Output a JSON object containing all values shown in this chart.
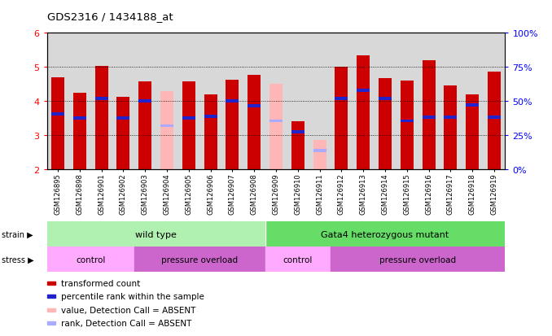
{
  "title": "GDS2316 / 1434188_at",
  "samples": [
    "GSM126895",
    "GSM126898",
    "GSM126901",
    "GSM126902",
    "GSM126903",
    "GSM126904",
    "GSM126905",
    "GSM126906",
    "GSM126907",
    "GSM126908",
    "GSM126909",
    "GSM126910",
    "GSM126911",
    "GSM126912",
    "GSM126913",
    "GSM126914",
    "GSM126915",
    "GSM126916",
    "GSM126917",
    "GSM126918",
    "GSM126919"
  ],
  "bar_values": [
    4.7,
    4.25,
    5.02,
    4.12,
    4.58,
    4.3,
    4.58,
    4.2,
    4.63,
    4.78,
    4.5,
    3.42,
    2.85,
    5.0,
    5.35,
    4.67,
    4.6,
    5.2,
    4.45,
    4.2,
    4.87
  ],
  "blue_markers": [
    3.62,
    3.5,
    4.07,
    3.5,
    4.0,
    3.28,
    3.5,
    3.55,
    4.0,
    3.87,
    3.42,
    3.1,
    2.55,
    4.07,
    4.32,
    4.07,
    3.42,
    3.53,
    3.53,
    3.88,
    3.52
  ],
  "absent_flag": [
    false,
    false,
    false,
    false,
    false,
    true,
    false,
    false,
    false,
    false,
    true,
    false,
    true,
    false,
    false,
    false,
    false,
    false,
    false,
    false,
    false
  ],
  "ymin": 2.0,
  "ymax": 6.0,
  "yticks_left": [
    2,
    3,
    4,
    5,
    6
  ],
  "yticks_right": [
    0,
    25,
    50,
    75,
    100
  ],
  "bar_color_normal": "#cc0000",
  "bar_color_absent": "#ffb6b6",
  "blue_color_normal": "#2222cc",
  "blue_color_absent": "#aaaaff",
  "strain_wild_color": "#b0f0b0",
  "strain_mutant_color": "#66dd66",
  "stress_control_color": "#ffaaff",
  "stress_overload_color": "#cc66cc"
}
